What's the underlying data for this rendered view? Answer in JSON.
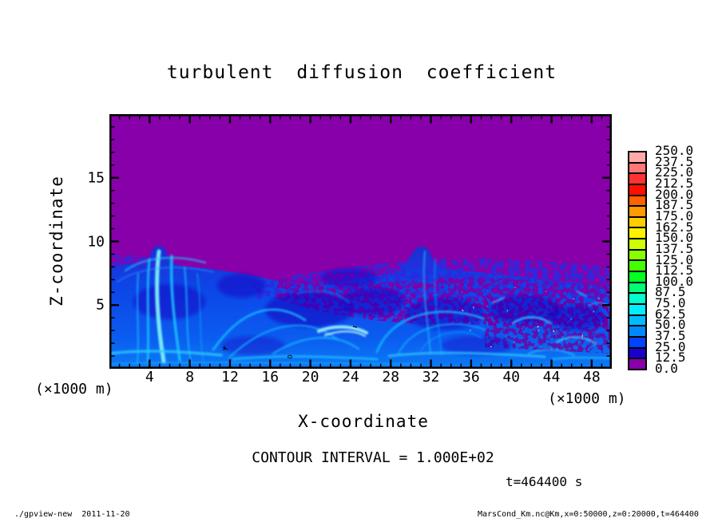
{
  "title": "turbulent diffusion coefficient",
  "plot": {
    "x_axis": {
      "label": "X-coordinate",
      "unit_left": "(×1000 m)",
      "unit_right": "(×1000 m)",
      "ticks": [
        4,
        8,
        12,
        16,
        20,
        24,
        28,
        32,
        36,
        40,
        44,
        48
      ],
      "range": [
        0,
        50
      ],
      "minor_step": 1,
      "major_step": 4
    },
    "y_axis": {
      "label": "Z-coordinate",
      "ticks": [
        5,
        10,
        15
      ],
      "range": [
        0,
        20
      ],
      "minor_step": 1,
      "major_step": 5
    }
  },
  "colorbar": {
    "levels_top_to_bottom": [
      "250.0",
      "237.5",
      "225.0",
      "212.5",
      "200.0",
      "187.5",
      "175.0",
      "162.5",
      "150.0",
      "137.5",
      "125.0",
      "112.5",
      "100.0",
      "87.5",
      "75.0",
      "62.5",
      "50.0",
      "37.5",
      "25.0",
      "12.5",
      "0.0"
    ],
    "colors_top_to_bottom": [
      "#ffaaaa",
      "#ff7777",
      "#ff3333",
      "#ff0f00",
      "#ff6000",
      "#ff9900",
      "#ffcc00",
      "#fff200",
      "#ccff00",
      "#88ff00",
      "#44ff00",
      "#00ff22",
      "#00ff77",
      "#00ffcc",
      "#00eeff",
      "#00bbff",
      "#0088ff",
      "#0044ff",
      "#1a00cc",
      "#8800aa"
    ]
  },
  "annotations": {
    "contour_interval": "CONTOUR INTERVAL = 1.000E+02",
    "time": "t=464400 s",
    "footer_left": "./gpview-new  2011-11-20",
    "footer_right": "MarsCond_Km.nc@Km,x=0:50000,z=0:20000,t=464400"
  },
  "colors": {
    "background_purple": "#8800aa",
    "deep_blue": "#1a00cc",
    "mid_blue": "#0d46e8",
    "cyan_filament": "#55e8ff",
    "frame_black": "#000000"
  },
  "chart_data": {
    "type": "heatmap",
    "title": "turbulent diffusion coefficient",
    "xlabel": "X-coordinate",
    "ylabel": "Z-coordinate",
    "axis_units": "×1000 m",
    "xlim": [
      0,
      50
    ],
    "zlim": [
      0,
      20
    ],
    "x_ticks": [
      4,
      8,
      12,
      16,
      20,
      24,
      28,
      32,
      36,
      40,
      44,
      48
    ],
    "z_ticks": [
      5,
      10,
      15
    ],
    "palette_levels": [
      0,
      12.5,
      25,
      37.5,
      50,
      62.5,
      75,
      87.5,
      100,
      112.5,
      125,
      137.5,
      150,
      162.5,
      175,
      187.5,
      200,
      212.5,
      225,
      237.5,
      250
    ],
    "contour_interval": 100,
    "time_label": "t=464400 s",
    "field_description": "Turbulent diffusion coefficient: quiescent region (value bin 0-12.5, purple) above a convectively mixed layer (values ~12.5-100, blues with cyan filaments) capped near z=8; two plumes overshoot to z~9.5 near x~5 and x~31; speckled entrainment zone at the interface, strongest for x>18 and x>40.",
    "mixed_layer_top_profile": {
      "x": [
        0,
        2,
        4,
        4.6,
        5.2,
        6,
        8,
        11,
        14,
        16,
        18,
        20,
        23,
        26,
        28,
        30,
        30.6,
        31.3,
        32,
        33.5,
        36,
        38,
        40,
        42,
        44,
        46,
        48,
        50
      ],
      "z": [
        8.0,
        8.3,
        8.2,
        9.5,
        9.7,
        9.2,
        8.3,
        7.8,
        7.6,
        7.1,
        6.7,
        6.6,
        6.8,
        7.0,
        7.4,
        8.4,
        9.4,
        9.7,
        9.1,
        8.0,
        7.7,
        7.9,
        7.5,
        7.0,
        6.8,
        6.9,
        6.6,
        6.4
      ]
    },
    "value_range_in_turbulent_layer": [
      12.5,
      112.5
    ],
    "legend_position": "right"
  }
}
